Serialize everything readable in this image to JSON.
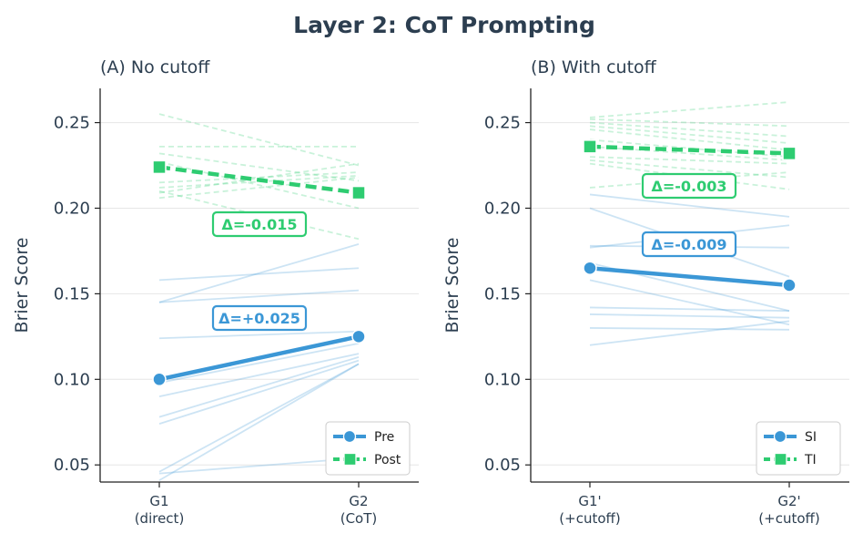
{
  "suptitle": "Layer 2: CoT Prompting",
  "colors": {
    "blue": "#3b97d6",
    "green": "#2ecc71",
    "text": "#2c3e50",
    "grid": "#e6e6e6"
  },
  "chart_data": [
    {
      "type": "line",
      "panel_title": "(A) No cutoff",
      "ylabel": "Brier Score",
      "ylim": [
        0.04,
        0.27
      ],
      "yticks": [
        "0.05",
        "0.10",
        "0.15",
        "0.20",
        "0.25"
      ],
      "categories": [
        "G1\n(direct)",
        "G2\n(CoT)"
      ],
      "legend": {
        "loc": "lower-right",
        "entries": [
          "Pre",
          "Post"
        ]
      },
      "series": [
        {
          "name": "Pre",
          "style": "solid",
          "marker": "circle",
          "color": "#3b97d6",
          "values": [
            0.1,
            0.125
          ]
        },
        {
          "name": "Post",
          "style": "dashed",
          "marker": "square",
          "color": "#2ecc71",
          "values": [
            0.224,
            0.209
          ]
        }
      ],
      "background_lines": {
        "Pre": [
          [
            0.158,
            0.165
          ],
          [
            0.145,
            0.179
          ],
          [
            0.145,
            0.152
          ],
          [
            0.124,
            0.128
          ],
          [
            0.098,
            0.121
          ],
          [
            0.09,
            0.115
          ],
          [
            0.078,
            0.113
          ],
          [
            0.074,
            0.111
          ],
          [
            0.046,
            0.109
          ],
          [
            0.041,
            0.109
          ],
          [
            0.045,
            0.054
          ]
        ],
        "Post": [
          [
            0.255,
            0.225
          ],
          [
            0.236,
            0.236
          ],
          [
            0.232,
            0.216
          ],
          [
            0.227,
            0.2
          ],
          [
            0.215,
            0.221
          ],
          [
            0.212,
            0.219
          ],
          [
            0.209,
            0.226
          ],
          [
            0.206,
            0.218
          ],
          [
            0.21,
            0.182
          ]
        ]
      },
      "annotations": [
        {
          "text": "Δ=-0.015",
          "series": "Post"
        },
        {
          "text": "Δ=+0.025",
          "series": "Pre"
        }
      ]
    },
    {
      "type": "line",
      "panel_title": "(B) With cutoff",
      "ylabel": "Brier Score",
      "ylim": [
        0.04,
        0.27
      ],
      "yticks": [
        "0.05",
        "0.10",
        "0.15",
        "0.20",
        "0.25"
      ],
      "categories": [
        "G1'\n(+cutoff)",
        "G2'\n(+cutoff)"
      ],
      "legend": {
        "loc": "lower-right",
        "entries": [
          "SI",
          "TI"
        ]
      },
      "series": [
        {
          "name": "SI",
          "style": "solid",
          "marker": "circle",
          "color": "#3b97d6",
          "values": [
            0.165,
            0.155
          ]
        },
        {
          "name": "TI",
          "style": "dashed",
          "marker": "square",
          "color": "#2ecc71",
          "values": [
            0.236,
            0.232
          ]
        }
      ],
      "background_lines": {
        "SI": [
          [
            0.208,
            0.195
          ],
          [
            0.2,
            0.16
          ],
          [
            0.178,
            0.177
          ],
          [
            0.177,
            0.19
          ],
          [
            0.168,
            0.14
          ],
          [
            0.158,
            0.132
          ],
          [
            0.142,
            0.14
          ],
          [
            0.138,
            0.136
          ],
          [
            0.13,
            0.129
          ],
          [
            0.12,
            0.134
          ]
        ],
        "TI": [
          [
            0.253,
            0.262
          ],
          [
            0.252,
            0.248
          ],
          [
            0.25,
            0.242
          ],
          [
            0.248,
            0.238
          ],
          [
            0.246,
            0.234
          ],
          [
            0.24,
            0.23
          ],
          [
            0.236,
            0.228
          ],
          [
            0.23,
            0.226
          ],
          [
            0.228,
            0.218
          ],
          [
            0.226,
            0.211
          ],
          [
            0.212,
            0.221
          ]
        ]
      },
      "annotations": [
        {
          "text": "Δ=-0.003",
          "series": "TI"
        },
        {
          "text": "Δ=-0.009",
          "series": "SI"
        }
      ]
    }
  ]
}
